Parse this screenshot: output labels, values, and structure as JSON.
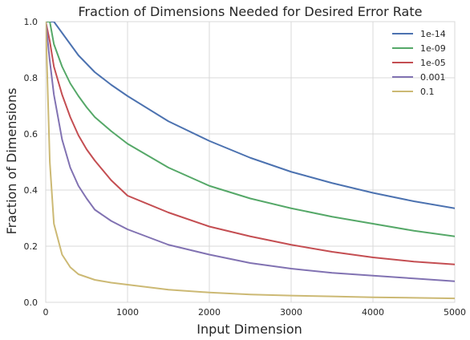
{
  "chart_data": {
    "type": "line",
    "title": "Fraction of Dimensions Needed for Desired Error Rate",
    "xlabel": "Input Dimension",
    "ylabel": "Fraction of Dimensions",
    "xlim": [
      0,
      5000
    ],
    "ylim": [
      0.0,
      1.0
    ],
    "x_ticks": [
      0,
      1000,
      2000,
      3000,
      4000,
      5000
    ],
    "y_ticks": [
      0.0,
      0.2,
      0.4,
      0.6,
      0.8,
      1.0
    ],
    "y_tick_labels": [
      "0.0",
      "0.2",
      "0.4",
      "0.6",
      "0.8",
      "1.0"
    ],
    "grid": true,
    "legend_position": "top-right",
    "x": [
      0,
      50,
      100,
      200,
      300,
      400,
      500,
      600,
      800,
      1000,
      1500,
      2000,
      2500,
      3000,
      3500,
      4000,
      4500,
      5000
    ],
    "series": [
      {
        "name": "1e-14",
        "color": "#4c72b0",
        "values": [
          1.0,
          1.0,
          1.0,
          0.96,
          0.92,
          0.88,
          0.85,
          0.82,
          0.775,
          0.735,
          0.645,
          0.575,
          0.515,
          0.465,
          0.425,
          0.39,
          0.36,
          0.335
        ]
      },
      {
        "name": "1e-09",
        "color": "#55a868",
        "values": [
          1.0,
          1.0,
          0.92,
          0.84,
          0.78,
          0.735,
          0.695,
          0.66,
          0.61,
          0.565,
          0.48,
          0.415,
          0.37,
          0.335,
          0.305,
          0.28,
          0.255,
          0.235
        ]
      },
      {
        "name": "1e-05",
        "color": "#c44e52",
        "values": [
          1.0,
          0.93,
          0.84,
          0.74,
          0.66,
          0.595,
          0.545,
          0.505,
          0.435,
          0.38,
          0.32,
          0.27,
          0.235,
          0.205,
          0.18,
          0.16,
          0.145,
          0.135
        ]
      },
      {
        "name": "0.001",
        "color": "#8172b2",
        "values": [
          1.0,
          0.86,
          0.74,
          0.58,
          0.48,
          0.415,
          0.37,
          0.33,
          0.29,
          0.26,
          0.205,
          0.17,
          0.14,
          0.12,
          0.105,
          0.095,
          0.085,
          0.075
        ]
      },
      {
        "name": "0.1",
        "color": "#ccb974",
        "values": [
          1.0,
          0.5,
          0.28,
          0.17,
          0.125,
          0.1,
          0.09,
          0.08,
          0.07,
          0.063,
          0.045,
          0.035,
          0.028,
          0.024,
          0.021,
          0.018,
          0.016,
          0.014
        ]
      }
    ]
  }
}
